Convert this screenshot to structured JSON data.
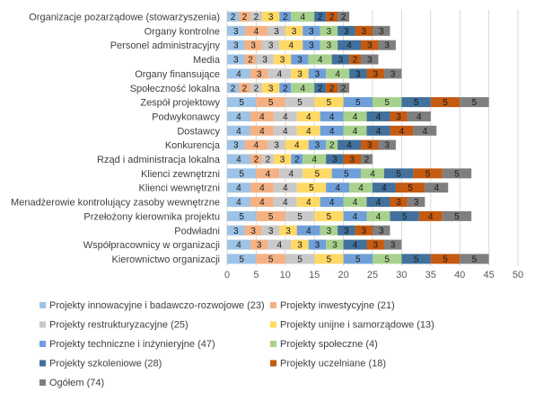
{
  "chart_data": {
    "type": "bar",
    "orientation": "horizontal",
    "stacked": true,
    "categories": [
      "Organizacje pozarządowe (stowarzyszenia)",
      "Organy kontrolne",
      "Personel administracyjny",
      "Media",
      "Organy finansujące",
      "Społeczność lokalna",
      "Zespół projektowy",
      "Podwykonawcy",
      "Dostawcy",
      "Konkurencja",
      "Rząd i administracja lokalna",
      "Klienci zewnętrzni",
      "Klienci wewnętrzni",
      "Menadżerowie kontrolujący zasoby wewnętrzne",
      "Przełożony kierownika projektu",
      "Podwładni",
      "Współpracownicy w organizacji",
      "Kierownictwo organizacji"
    ],
    "series": [
      {
        "name": "Projekty innowacyjne i badawczo-rozwojowe (23)",
        "color": "#9dc3e6",
        "values": [
          2,
          3,
          3,
          3,
          4,
          2,
          5,
          4,
          4,
          3,
          4,
          5,
          4,
          4,
          5,
          3,
          4,
          5
        ]
      },
      {
        "name": "Projekty inwestycyjne (21)",
        "color": "#f4b183",
        "values": [
          2,
          4,
          3,
          2,
          3,
          2,
          5,
          4,
          4,
          4,
          2,
          4,
          4,
          4,
          5,
          3,
          3,
          5
        ]
      },
      {
        "name": "Projekty restrukturyzacyjne (25)",
        "color": "#c9c9c9",
        "values": [
          2,
          3,
          3,
          3,
          4,
          2,
          5,
          4,
          4,
          3,
          2,
          4,
          4,
          4,
          5,
          3,
          4,
          5
        ]
      },
      {
        "name": "Projekty unijne i samorządowe (13)",
        "color": "#ffd966",
        "values": [
          3,
          3,
          4,
          3,
          3,
          3,
          5,
          4,
          4,
          4,
          3,
          5,
          5,
          4,
          5,
          3,
          3,
          5
        ]
      },
      {
        "name": "Projekty techniczne i inżynieryjne (47)",
        "color": "#6f9fd8",
        "values": [
          2,
          3,
          3,
          3,
          3,
          2,
          5,
          4,
          4,
          3,
          2,
          5,
          4,
          4,
          4,
          4,
          3,
          5
        ]
      },
      {
        "name": "Projekty społeczne (4)",
        "color": "#a9d18e",
        "values": [
          4,
          3,
          3,
          4,
          4,
          4,
          5,
          4,
          4,
          2,
          4,
          4,
          4,
          4,
          4,
          3,
          3,
          5
        ]
      },
      {
        "name": "Projekty szkoleniowe (28)",
        "color": "#41719c",
        "values": [
          2,
          3,
          4,
          3,
          3,
          2,
          5,
          4,
          4,
          4,
          3,
          5,
          4,
          4,
          5,
          3,
          4,
          5
        ]
      },
      {
        "name": "Projekty uczelniane (18)",
        "color": "#c55a11",
        "values": [
          2,
          3,
          3,
          2,
          3,
          2,
          5,
          3,
          4,
          3,
          3,
          5,
          5,
          3,
          4,
          3,
          3,
          5
        ]
      },
      {
        "name": "Ogółem (74)",
        "color": "#7f7f7f",
        "values": [
          2,
          3,
          3,
          3,
          3,
          2,
          5,
          4,
          4,
          3,
          2,
          5,
          4,
          3,
          5,
          3,
          3,
          5
        ]
      }
    ],
    "xlim": [
      0,
      50
    ],
    "xticks": [
      "0",
      "5",
      "10",
      "15",
      "20",
      "25",
      "30",
      "35",
      "40",
      "45",
      "50"
    ],
    "grid": true,
    "legend_position": "bottom"
  }
}
